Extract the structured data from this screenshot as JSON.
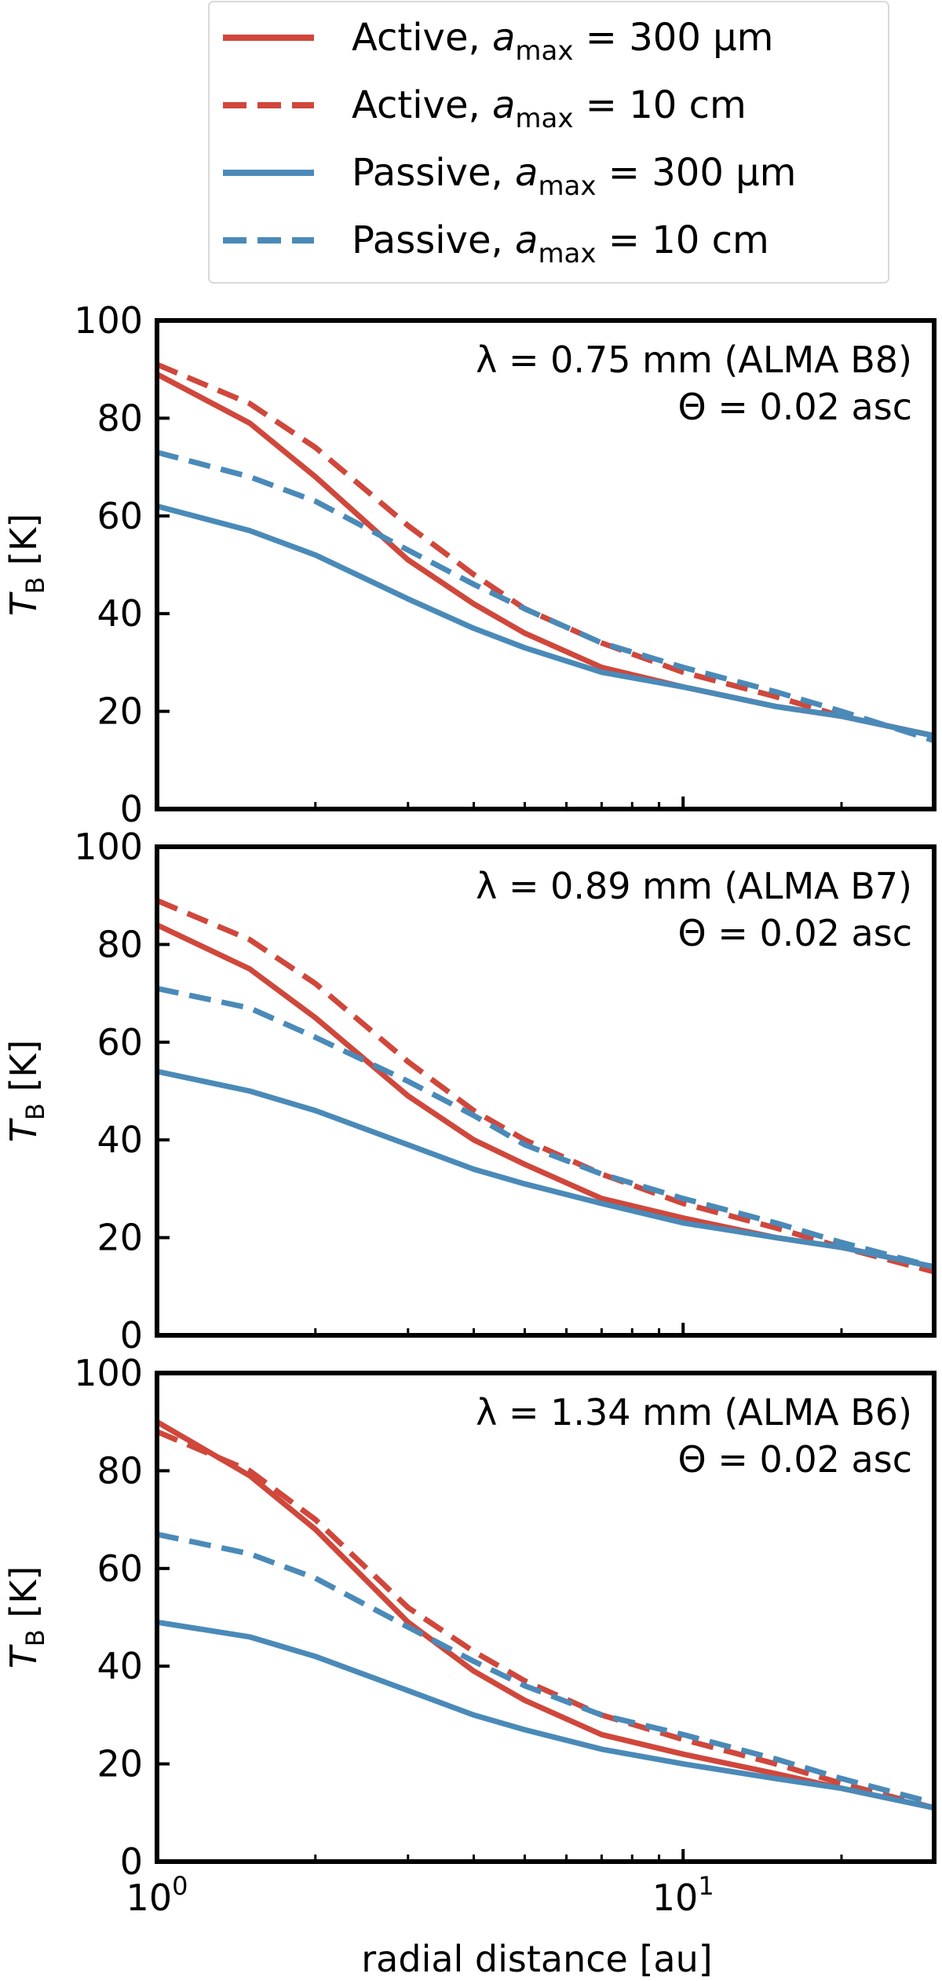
{
  "colors": {
    "active": "#d0473b",
    "passive": "#4a8ab8"
  },
  "legend": {
    "entries": [
      {
        "key": "active_300um",
        "prefix": "Active, ",
        "a": "a",
        "sub": "max",
        "suffix": " = 300 μm",
        "series_color": "active",
        "dashed": false
      },
      {
        "key": "active_10cm",
        "prefix": "Active, ",
        "a": "a",
        "sub": "max",
        "suffix": " = 10 cm",
        "series_color": "active",
        "dashed": true
      },
      {
        "key": "passive_300um",
        "prefix": "Passive, ",
        "a": "a",
        "sub": "max",
        "suffix": " = 300 μm",
        "series_color": "passive",
        "dashed": false
      },
      {
        "key": "passive_10cm",
        "prefix": "Passive, ",
        "a": "a",
        "sub": "max",
        "suffix": " = 10 cm",
        "series_color": "passive",
        "dashed": true
      }
    ]
  },
  "y_axis": {
    "label_T": "T",
    "label_sub": "B",
    "label_unit": " [K]"
  },
  "x_axis": {
    "label": "radial distance [au]",
    "tick_base": "10",
    "tick_exps": [
      "0",
      "1"
    ]
  },
  "chart_data": [
    {
      "type": "line",
      "panel": "B8",
      "annotation_lambda": "λ = 0.75 mm (ALMA B8)",
      "annotation_theta": "Θ = 0.02 asc",
      "xscale": "log",
      "xlim": [
        1,
        30
      ],
      "ylim": [
        0,
        100
      ],
      "yticks": [
        0,
        20,
        40,
        60,
        80,
        100
      ],
      "x": [
        1,
        1.5,
        2,
        3,
        4,
        5,
        7,
        10,
        15,
        20,
        30
      ],
      "series": [
        {
          "name": "Active, a_max = 300 μm",
          "color": "active",
          "dashed": false,
          "values": [
            89,
            79,
            68,
            51,
            42,
            36,
            29,
            25,
            21,
            19,
            15
          ]
        },
        {
          "name": "Active, a_max = 10 cm",
          "color": "active",
          "dashed": true,
          "values": [
            91,
            83,
            74,
            58,
            48,
            41,
            34,
            28,
            23,
            19,
            15
          ]
        },
        {
          "name": "Passive, a_max = 300 μm",
          "color": "passive",
          "dashed": false,
          "values": [
            62,
            57,
            52,
            43,
            37,
            33,
            28,
            25,
            21,
            19,
            15
          ]
        },
        {
          "name": "Passive, a_max = 10 cm",
          "color": "passive",
          "dashed": true,
          "values": [
            73,
            68,
            63,
            53,
            46,
            41,
            34,
            29,
            24,
            20,
            14
          ]
        }
      ]
    },
    {
      "type": "line",
      "panel": "B7",
      "annotation_lambda": "λ = 0.89 mm (ALMA B7)",
      "annotation_theta": "Θ = 0.02 asc",
      "xscale": "log",
      "xlim": [
        1,
        30
      ],
      "ylim": [
        0,
        100
      ],
      "yticks": [
        0,
        20,
        40,
        60,
        80,
        100
      ],
      "x": [
        1,
        1.5,
        2,
        3,
        4,
        5,
        7,
        10,
        15,
        20,
        30
      ],
      "series": [
        {
          "name": "Active, a_max = 300 μm",
          "color": "active",
          "dashed": false,
          "values": [
            84,
            75,
            65,
            49,
            40,
            35,
            28,
            24,
            20,
            18,
            14
          ]
        },
        {
          "name": "Active, a_max = 10 cm",
          "color": "active",
          "dashed": true,
          "values": [
            89,
            81,
            72,
            56,
            46,
            40,
            33,
            27,
            22,
            18,
            13
          ]
        },
        {
          "name": "Passive, a_max = 300 μm",
          "color": "passive",
          "dashed": false,
          "values": [
            54,
            50,
            46,
            39,
            34,
            31,
            27,
            23,
            20,
            18,
            14
          ]
        },
        {
          "name": "Passive, a_max = 10 cm",
          "color": "passive",
          "dashed": true,
          "values": [
            71,
            67,
            61,
            52,
            45,
            39,
            33,
            28,
            23,
            19,
            14
          ]
        }
      ]
    },
    {
      "type": "line",
      "panel": "B6",
      "annotation_lambda": "λ = 1.34 mm (ALMA B6)",
      "annotation_theta": "Θ = 0.02 asc",
      "xscale": "log",
      "xlim": [
        1,
        30
      ],
      "ylim": [
        0,
        100
      ],
      "yticks": [
        0,
        20,
        40,
        60,
        80,
        100
      ],
      "x": [
        1,
        1.5,
        2,
        3,
        4,
        5,
        7,
        10,
        15,
        20,
        30
      ],
      "series": [
        {
          "name": "Active, a_max = 300 μm",
          "color": "active",
          "dashed": false,
          "values": [
            90,
            79,
            68,
            49,
            39,
            33,
            26,
            22,
            18,
            15,
            11
          ]
        },
        {
          "name": "Active, a_max = 10 cm",
          "color": "active",
          "dashed": true,
          "values": [
            88,
            80,
            70,
            52,
            43,
            37,
            30,
            25,
            20,
            16,
            11
          ]
        },
        {
          "name": "Passive, a_max = 300 μm",
          "color": "passive",
          "dashed": false,
          "values": [
            49,
            46,
            42,
            35,
            30,
            27,
            23,
            20,
            17,
            15,
            11
          ]
        },
        {
          "name": "Passive, a_max = 10 cm",
          "color": "passive",
          "dashed": true,
          "values": [
            67,
            63,
            58,
            48,
            41,
            36,
            30,
            26,
            21,
            17,
            12
          ]
        }
      ]
    }
  ]
}
